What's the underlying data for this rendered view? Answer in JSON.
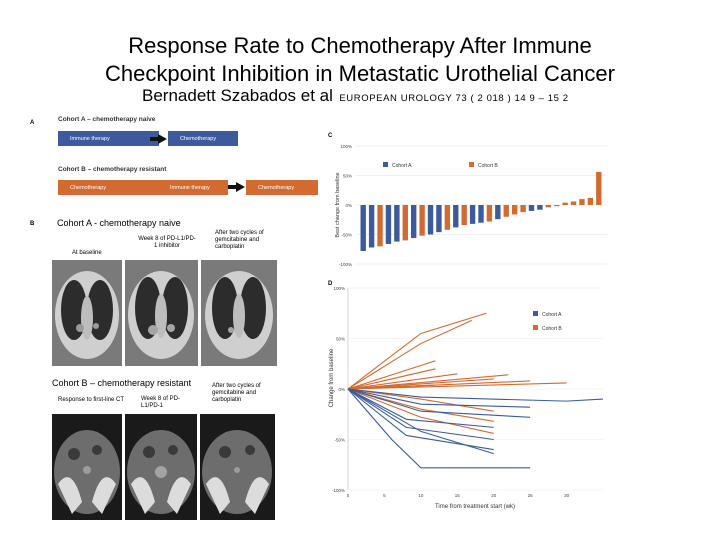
{
  "slide": {
    "title_line1": "Response Rate to Chemotherapy After Immune",
    "title_line2": "Checkpoint Inhibition in Metastatic Urothelial Cancer",
    "author": "Bernadett Szabados et al",
    "journal": "EUROPEAN UROLOGY 73 ( 2 018 ) 14 9 – 15 2"
  },
  "panel_a": {
    "label": "A",
    "cohort_a_heading": "Cohort A – chemotherapy naive",
    "cohort_a_steps": [
      "Immune therapy",
      "Chemotherapy"
    ],
    "cohort_b_heading": "Cohort B – chemotherapy resistant",
    "cohort_b_steps": [
      "Chemotherapy",
      "Immune therapy",
      "Chemotherapy"
    ]
  },
  "panel_b": {
    "label": "B",
    "cohort_a_heading": "Cohort A - chemotherapy naive",
    "cohort_a_captions": [
      "At baseline",
      "Week 8 of PD-L1/PD-1 inhibitor",
      "After two cycles of gemcitabine and carboplatin"
    ],
    "cohort_b_heading": "Cohort B – chemotherapy resistant",
    "cohort_b_captions": [
      "Response to first-line CT",
      "Week 8 of PD-L1/PD-1",
      "After two cycles of gemcitabine and carboplatin"
    ]
  },
  "chart_data": [
    {
      "panel": "C",
      "type": "bar",
      "title": "",
      "ylabel": "Best change from baseline",
      "yticks": [
        "100%",
        "50%",
        "0%",
        "-50%",
        "-100%"
      ],
      "ylim": [
        -100,
        100
      ],
      "legend": [
        "Cohort A",
        "Cohort B"
      ],
      "series_colors": {
        "Cohort A": "#3b5b9c",
        "Cohort B": "#d36a2f"
      },
      "bars": [
        {
          "cohort": "Cohort A",
          "value": -78
        },
        {
          "cohort": "Cohort A",
          "value": -72
        },
        {
          "cohort": "Cohort B",
          "value": -70
        },
        {
          "cohort": "Cohort A",
          "value": -66
        },
        {
          "cohort": "Cohort A",
          "value": -62
        },
        {
          "cohort": "Cohort B",
          "value": -60
        },
        {
          "cohort": "Cohort A",
          "value": -56
        },
        {
          "cohort": "Cohort B",
          "value": -52
        },
        {
          "cohort": "Cohort A",
          "value": -50
        },
        {
          "cohort": "Cohort A",
          "value": -46
        },
        {
          "cohort": "Cohort B",
          "value": -42
        },
        {
          "cohort": "Cohort A",
          "value": -38
        },
        {
          "cohort": "Cohort B",
          "value": -34
        },
        {
          "cohort": "Cohort A",
          "value": -32
        },
        {
          "cohort": "Cohort A",
          "value": -30
        },
        {
          "cohort": "Cohort B",
          "value": -28
        },
        {
          "cohort": "Cohort A",
          "value": -24
        },
        {
          "cohort": "Cohort B",
          "value": -20
        },
        {
          "cohort": "Cohort B",
          "value": -16
        },
        {
          "cohort": "Cohort B",
          "value": -12
        },
        {
          "cohort": "Cohort A",
          "value": -10
        },
        {
          "cohort": "Cohort A",
          "value": -8
        },
        {
          "cohort": "Cohort B",
          "value": -4
        },
        {
          "cohort": "Cohort B",
          "value": -2
        },
        {
          "cohort": "Cohort B",
          "value": 4
        },
        {
          "cohort": "Cohort B",
          "value": 6
        },
        {
          "cohort": "Cohort B",
          "value": 10
        },
        {
          "cohort": "Cohort B",
          "value": 12
        },
        {
          "cohort": "Cohort B",
          "value": 56
        }
      ]
    },
    {
      "panel": "D",
      "type": "line",
      "xlabel": "Time from treatment start (wk)",
      "ylabel": "Change from baseline",
      "yticks": [
        "100%",
        "50%",
        "0%",
        "-50%",
        "-100%"
      ],
      "xticks": [
        "0",
        "5",
        "10",
        "15",
        "20",
        "25",
        "30"
      ],
      "xlim": [
        0,
        35
      ],
      "ylim": [
        -100,
        100
      ],
      "legend": [
        "Cohort A",
        "Cohort B"
      ],
      "series_colors": {
        "Cohort A": "#3b5b9c",
        "Cohort B": "#d36a2f"
      },
      "series": [
        {
          "name": "Cohort B",
          "x": [
            0,
            10,
            19
          ],
          "y": [
            0,
            55,
            75
          ]
        },
        {
          "name": "Cohort B",
          "x": [
            0,
            10,
            17
          ],
          "y": [
            0,
            45,
            68
          ]
        },
        {
          "name": "Cohort B",
          "x": [
            0,
            12
          ],
          "y": [
            0,
            28
          ]
        },
        {
          "name": "Cohort B",
          "x": [
            0,
            12
          ],
          "y": [
            0,
            20
          ]
        },
        {
          "name": "Cohort B",
          "x": [
            0,
            15
          ],
          "y": [
            0,
            15
          ]
        },
        {
          "name": "Cohort B",
          "x": [
            0,
            22
          ],
          "y": [
            0,
            14
          ]
        },
        {
          "name": "Cohort B",
          "x": [
            0,
            20
          ],
          "y": [
            0,
            10
          ]
        },
        {
          "name": "Cohort B",
          "x": [
            0,
            25
          ],
          "y": [
            0,
            8
          ]
        },
        {
          "name": "Cohort B",
          "x": [
            0,
            30
          ],
          "y": [
            0,
            6
          ]
        },
        {
          "name": "Cohort B",
          "x": [
            0,
            12
          ],
          "y": [
            0,
            4
          ]
        },
        {
          "name": "Cohort B",
          "x": [
            0,
            10,
            20
          ],
          "y": [
            0,
            -10,
            -22
          ]
        },
        {
          "name": "Cohort B",
          "x": [
            0,
            10,
            20
          ],
          "y": [
            0,
            -20,
            -32
          ]
        },
        {
          "name": "Cohort B",
          "x": [
            0,
            10,
            20
          ],
          "y": [
            0,
            -28,
            -44
          ]
        },
        {
          "name": "Cohort A",
          "x": [
            0,
            10,
            30,
            35
          ],
          "y": [
            0,
            -8,
            -12,
            -10
          ]
        },
        {
          "name": "Cohort A",
          "x": [
            0,
            10,
            25
          ],
          "y": [
            0,
            -15,
            -18
          ]
        },
        {
          "name": "Cohort A",
          "x": [
            0,
            10,
            25
          ],
          "y": [
            0,
            -22,
            -28
          ]
        },
        {
          "name": "Cohort A",
          "x": [
            0,
            8,
            20
          ],
          "y": [
            0,
            -30,
            -38
          ]
        },
        {
          "name": "Cohort A",
          "x": [
            0,
            8,
            20
          ],
          "y": [
            0,
            -38,
            -50
          ]
        },
        {
          "name": "Cohort A",
          "x": [
            0,
            8,
            20
          ],
          "y": [
            0,
            -46,
            -60
          ]
        },
        {
          "name": "Cohort A",
          "x": [
            0,
            6,
            10,
            25
          ],
          "y": [
            0,
            -50,
            -78,
            -78
          ]
        },
        {
          "name": "Cohort A",
          "x": [
            0,
            10,
            20
          ],
          "y": [
            0,
            -42,
            -64
          ]
        }
      ]
    }
  ]
}
